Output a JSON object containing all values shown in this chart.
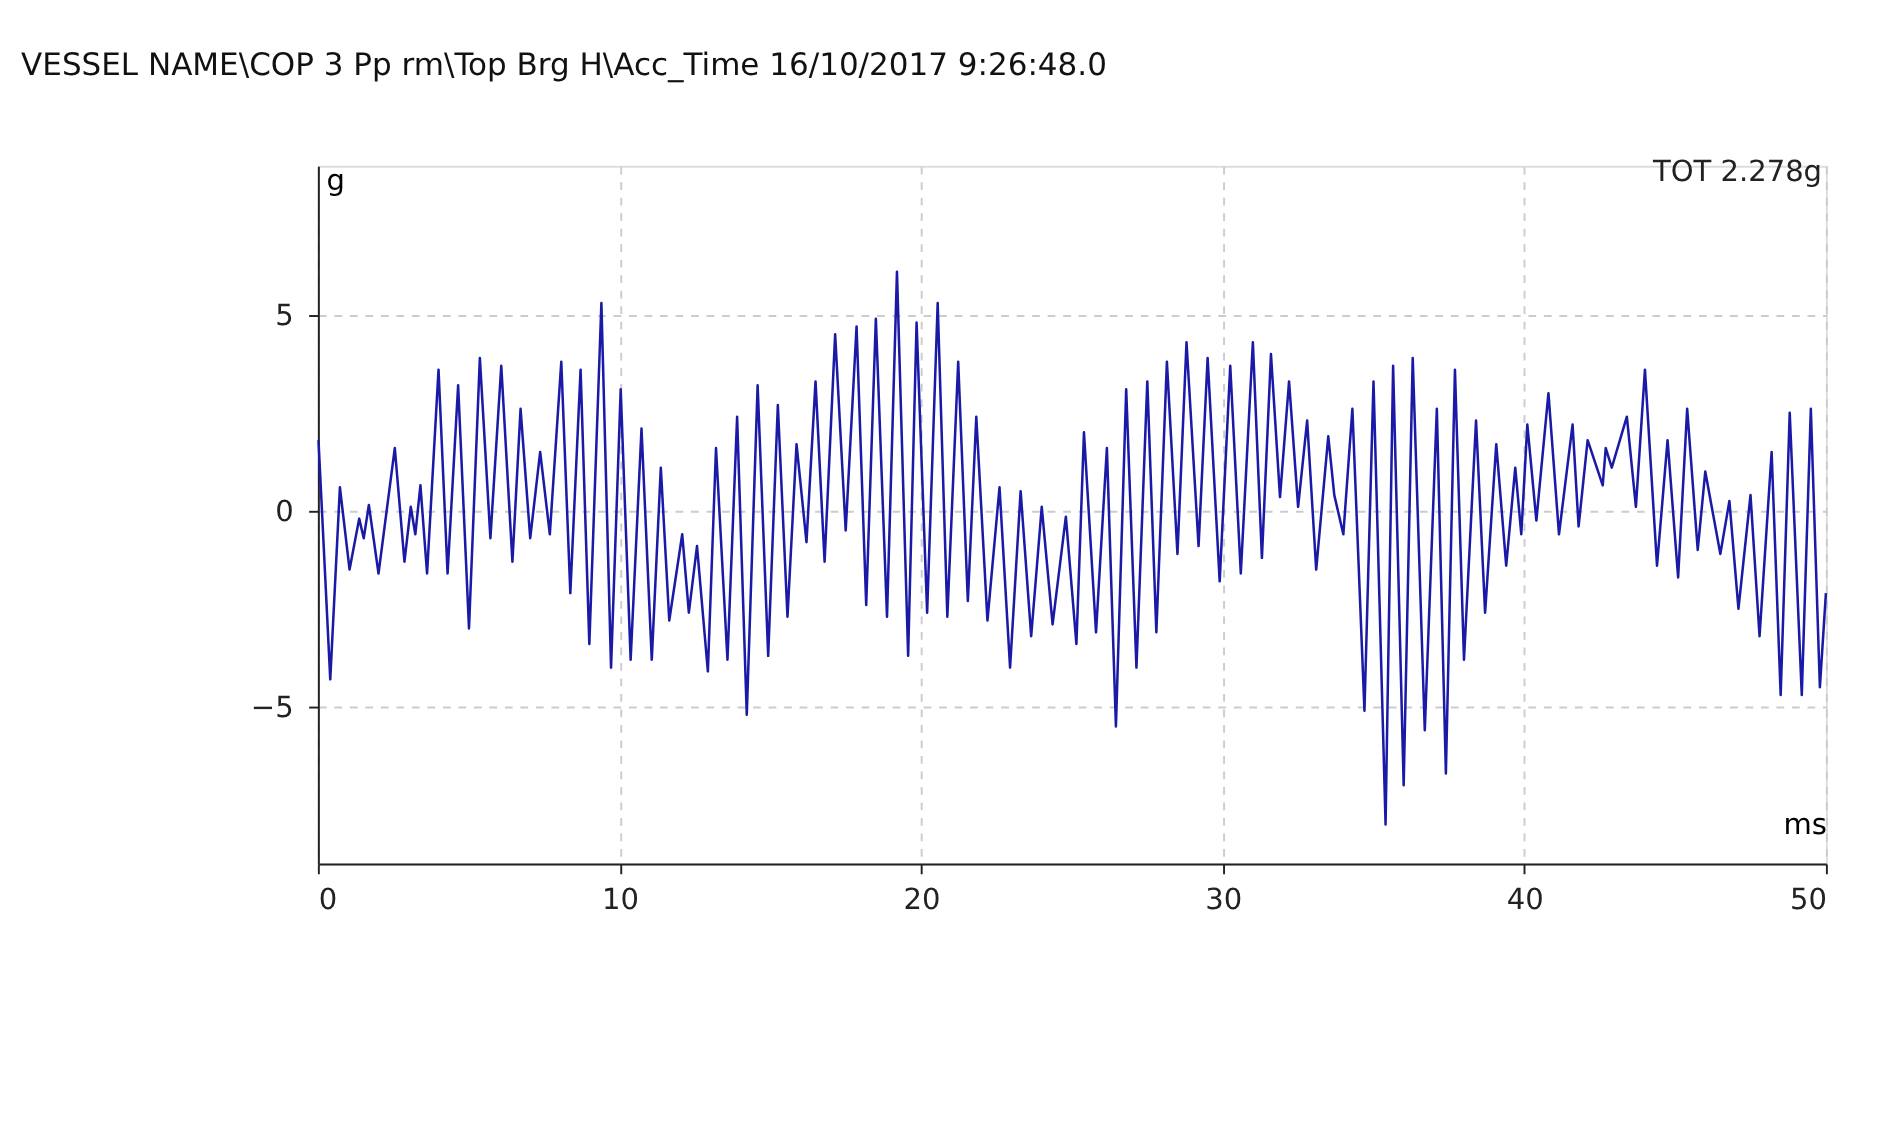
{
  "chart_data": {
    "type": "line",
    "title": "VESSEL NAME\\COP 3 Pp rm\\Top Brg H\\Acc_Time     16/10/2017 9:26:48.0",
    "xlabel": "ms",
    "ylabel": "g",
    "annotations": [
      "TOT 2.278g"
    ],
    "xlim": [
      0,
      50
    ],
    "xticks": [
      0,
      10,
      20,
      30,
      40,
      50
    ],
    "ylim": [
      -9,
      8.8
    ],
    "yticks": [
      -5,
      0,
      5
    ],
    "grid": true,
    "marker": "none",
    "line_style": "solid",
    "series": [
      {
        "color": "#1a1aa6",
        "x": [
          0.02,
          0.41,
          0.73,
          1.05,
          1.37,
          1.52,
          1.69,
          2.01,
          2.55,
          2.87,
          3.08,
          3.23,
          3.4,
          3.62,
          4.0,
          4.3,
          4.65,
          5.01,
          5.37,
          5.72,
          6.08,
          6.45,
          6.72,
          7.04,
          7.37,
          7.69,
          8.07,
          8.37,
          8.71,
          9.0,
          9.4,
          9.72,
          10.04,
          10.37,
          10.73,
          11.07,
          11.37,
          11.65,
          12.08,
          12.3,
          12.57,
          12.93,
          13.2,
          13.58,
          13.9,
          14.22,
          14.58,
          14.93,
          15.25,
          15.57,
          15.87,
          16.2,
          16.5,
          16.8,
          17.15,
          17.5,
          17.86,
          18.18,
          18.5,
          18.87,
          19.2,
          19.57,
          19.85,
          20.2,
          20.55,
          20.87,
          21.23,
          21.55,
          21.83,
          22.2,
          22.6,
          22.95,
          23.3,
          23.65,
          24.0,
          24.36,
          24.8,
          25.15,
          25.4,
          25.8,
          26.16,
          26.46,
          26.8,
          27.14,
          27.5,
          27.8,
          28.15,
          28.5,
          28.8,
          29.2,
          29.5,
          29.9,
          30.25,
          30.6,
          31.0,
          31.3,
          31.6,
          31.9,
          32.2,
          32.5,
          32.8,
          33.1,
          33.5,
          33.7,
          34.0,
          34.3,
          34.7,
          35.0,
          35.4,
          35.65,
          36.0,
          36.3,
          36.7,
          37.1,
          37.4,
          37.7,
          38.0,
          38.4,
          38.7,
          39.07,
          39.4,
          39.7,
          39.9,
          40.1,
          40.4,
          40.8,
          41.15,
          41.6,
          41.8,
          42.1,
          42.6,
          42.7,
          42.9,
          43.4,
          43.7,
          44.0,
          44.4,
          44.75,
          45.1,
          45.4,
          45.75,
          46.0,
          46.5,
          46.8,
          47.1,
          47.5,
          47.8,
          48.2,
          48.5,
          48.8,
          49.2,
          49.5,
          49.8,
          50.0
        ],
        "values": [
          1.8,
          -4.3,
          0.6,
          -1.5,
          -0.2,
          -0.7,
          0.15,
          -1.6,
          1.6,
          -1.3,
          0.1,
          -0.6,
          0.65,
          -1.6,
          3.6,
          -1.6,
          3.2,
          -3.0,
          3.9,
          -0.7,
          3.7,
          -1.3,
          2.6,
          -0.7,
          1.5,
          -0.6,
          3.8,
          -2.1,
          3.6,
          -3.4,
          5.3,
          -4.0,
          3.1,
          -3.8,
          2.1,
          -3.8,
          1.1,
          -2.8,
          -0.6,
          -2.6,
          -0.9,
          -4.1,
          1.6,
          -3.8,
          2.4,
          -5.2,
          3.2,
          -3.7,
          2.7,
          -2.7,
          1.7,
          -0.8,
          3.3,
          -1.3,
          4.5,
          -0.5,
          4.7,
          -2.4,
          4.9,
          -2.7,
          6.1,
          -3.7,
          4.8,
          -2.6,
          5.3,
          -2.7,
          3.8,
          -2.3,
          2.4,
          -2.8,
          0.6,
          -4.0,
          0.5,
          -3.2,
          0.1,
          -2.9,
          -0.15,
          -3.4,
          2.0,
          -3.1,
          1.6,
          -5.5,
          3.1,
          -4.0,
          3.3,
          -3.1,
          3.8,
          -1.1,
          4.3,
          -0.9,
          3.9,
          -1.8,
          3.7,
          -1.6,
          4.3,
          -1.2,
          4.0,
          0.35,
          3.3,
          0.1,
          2.3,
          -1.5,
          1.9,
          0.4,
          -0.6,
          2.6,
          -5.1,
          3.3,
          -8.0,
          3.7,
          -7.0,
          3.9,
          -5.6,
          2.6,
          -6.7,
          3.6,
          -3.8,
          2.3,
          -2.6,
          1.7,
          -1.4,
          1.1,
          -0.6,
          2.2,
          -0.25,
          3.0,
          -0.6,
          2.2,
          -0.4,
          1.8,
          0.65,
          1.6,
          1.1,
          2.4,
          0.1,
          3.6,
          -1.4,
          1.8,
          -1.7,
          2.6,
          -1.0,
          1.0,
          -1.1,
          0.25,
          -2.5,
          0.4,
          -3.2,
          1.5,
          -4.7,
          2.5,
          -4.7,
          2.6,
          -4.5,
          -2.1
        ]
      }
    ]
  }
}
